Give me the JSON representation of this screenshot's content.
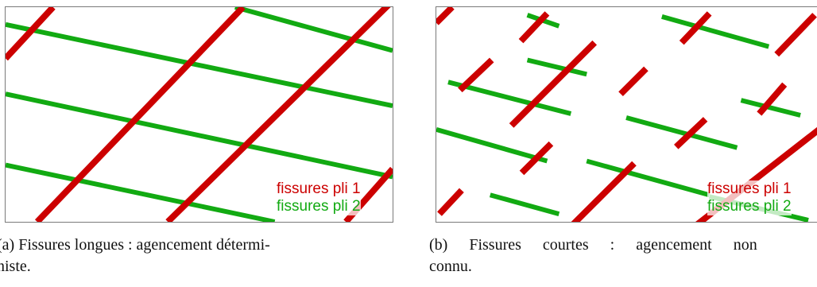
{
  "panels": [
    {
      "legend": {
        "series_1": "fissures pli 1",
        "series_2": "fissures pli 2"
      },
      "caption": {
        "line1": "(a) Fissures longues : agencement détermi-",
        "line2": "niste."
      }
    },
    {
      "legend": {
        "series_1": "fissures pli 1",
        "series_2": "fissures pli 2"
      },
      "caption": {
        "line1": "(b) Fissures courtes : agencement non",
        "line2": "connu."
      }
    }
  ],
  "colors": {
    "pli_1": "#cc0000",
    "pli_2": "#12aa12",
    "frame": "#7a7a7a"
  }
}
